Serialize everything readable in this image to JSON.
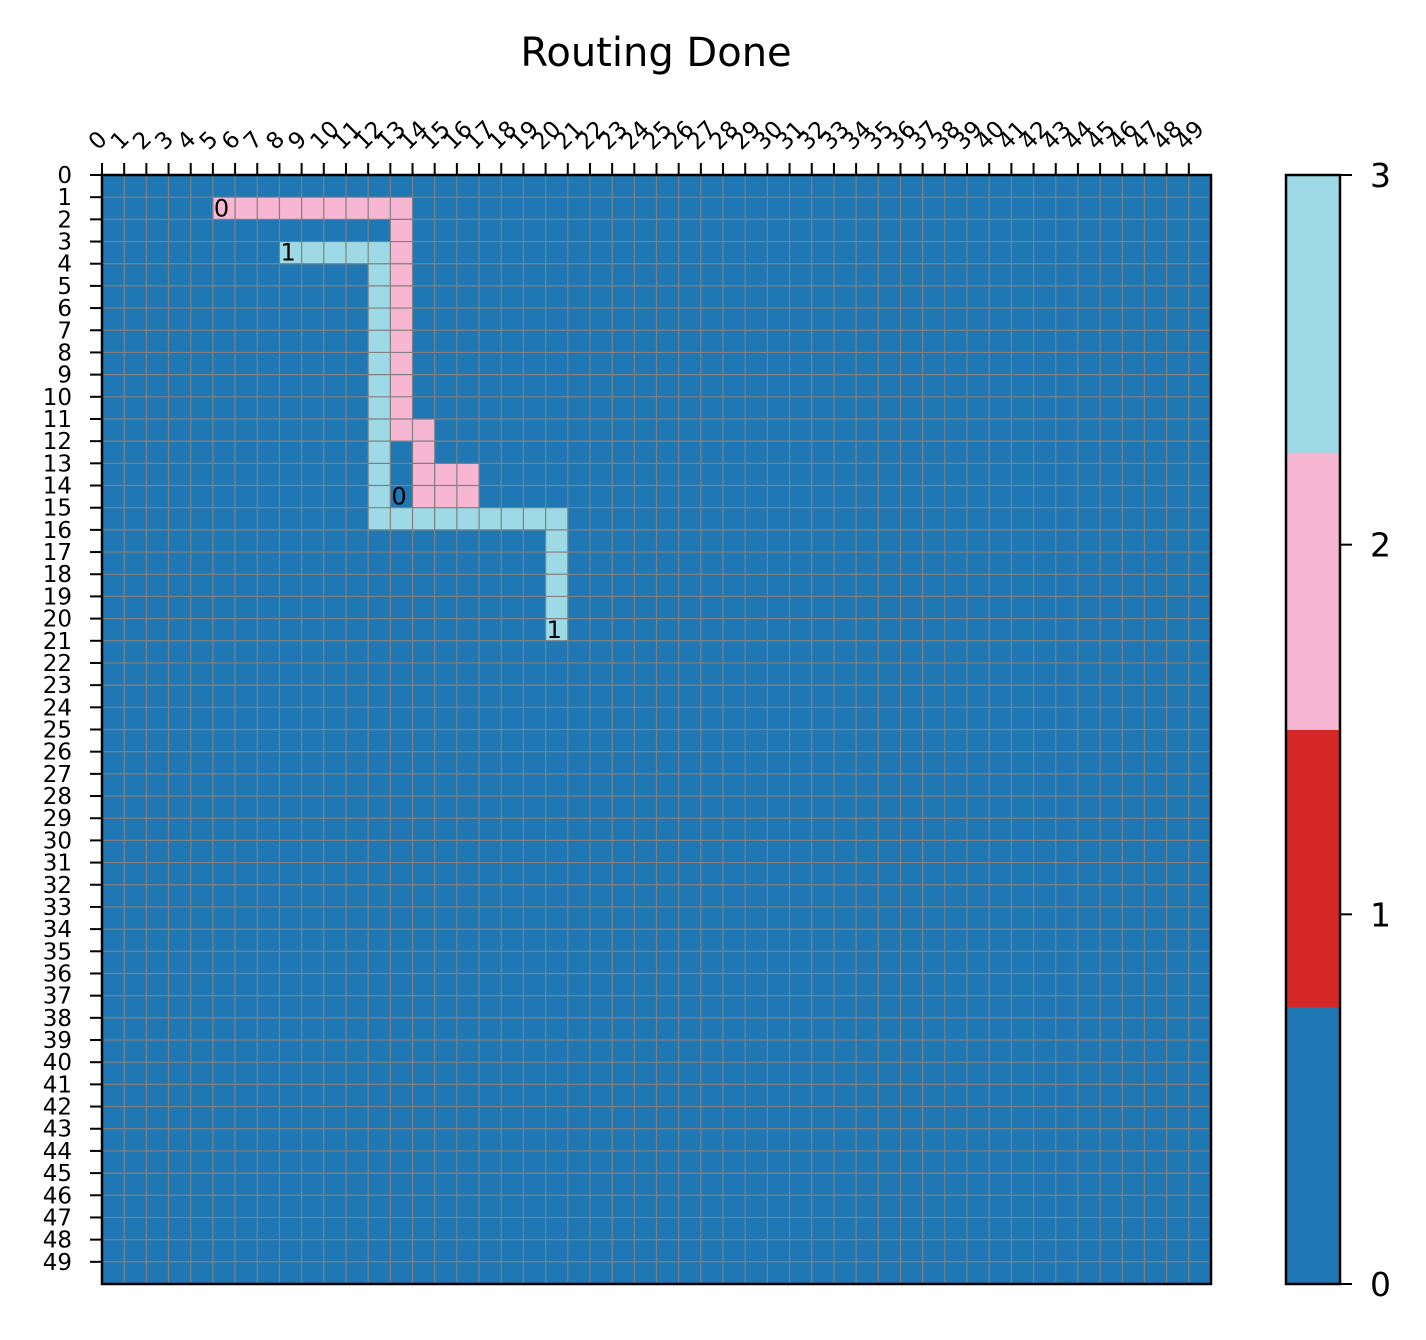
{
  "chart_data": {
    "type": "heatmap",
    "title": "Routing Done",
    "grid_size": 50,
    "grid": true,
    "x_tick_labels": [
      "0",
      "1",
      "2",
      "3",
      "4",
      "5",
      "6",
      "7",
      "8",
      "9",
      "10",
      "11",
      "12",
      "13",
      "14",
      "15",
      "16",
      "17",
      "18",
      "19",
      "20",
      "21",
      "22",
      "23",
      "24",
      "25",
      "26",
      "27",
      "28",
      "29",
      "30",
      "31",
      "32",
      "33",
      "34",
      "35",
      "36",
      "37",
      "38",
      "39",
      "40",
      "41",
      "42",
      "43",
      "44",
      "45",
      "46",
      "47",
      "48",
      "49"
    ],
    "y_tick_labels": [
      "0",
      "1",
      "2",
      "3",
      "4",
      "5",
      "6",
      "7",
      "8",
      "9",
      "10",
      "11",
      "12",
      "13",
      "14",
      "15",
      "16",
      "17",
      "18",
      "19",
      "20",
      "21",
      "22",
      "23",
      "24",
      "25",
      "26",
      "27",
      "28",
      "29",
      "30",
      "31",
      "32",
      "33",
      "34",
      "35",
      "36",
      "37",
      "38",
      "39",
      "40",
      "41",
      "42",
      "43",
      "44",
      "45",
      "46",
      "47",
      "48",
      "49"
    ],
    "default_value": 0,
    "colorbar": {
      "ticks": [
        "0",
        "1",
        "2",
        "3"
      ],
      "colors": [
        "#1f77b4",
        "#d62728",
        "#f7b6d2",
        "#9edae5"
      ]
    },
    "nets": [
      {
        "value": 2,
        "path": [
          [
            5,
            1
          ],
          [
            6,
            1
          ],
          [
            7,
            1
          ],
          [
            8,
            1
          ],
          [
            9,
            1
          ],
          [
            10,
            1
          ],
          [
            11,
            1
          ],
          [
            12,
            1
          ],
          [
            13,
            1
          ],
          [
            13,
            2
          ],
          [
            13,
            3
          ],
          [
            13,
            4
          ],
          [
            13,
            5
          ],
          [
            13,
            6
          ],
          [
            13,
            7
          ],
          [
            13,
            8
          ],
          [
            13,
            9
          ],
          [
            13,
            10
          ],
          [
            13,
            11
          ],
          [
            14,
            11
          ],
          [
            14,
            12
          ],
          [
            14,
            13
          ],
          [
            15,
            13
          ],
          [
            16,
            13
          ],
          [
            16,
            14
          ],
          [
            15,
            14
          ],
          [
            14,
            14
          ]
        ]
      },
      {
        "value": 3,
        "path": [
          [
            8,
            3
          ],
          [
            9,
            3
          ],
          [
            10,
            3
          ],
          [
            11,
            3
          ],
          [
            12,
            3
          ],
          [
            12,
            4
          ],
          [
            12,
            5
          ],
          [
            12,
            6
          ],
          [
            12,
            7
          ],
          [
            12,
            8
          ],
          [
            12,
            9
          ],
          [
            12,
            10
          ],
          [
            12,
            11
          ],
          [
            12,
            12
          ],
          [
            12,
            13
          ],
          [
            12,
            14
          ],
          [
            12,
            15
          ],
          [
            13,
            15
          ],
          [
            14,
            15
          ],
          [
            15,
            15
          ],
          [
            16,
            15
          ],
          [
            17,
            15
          ],
          [
            18,
            15
          ],
          [
            19,
            15
          ],
          [
            20,
            15
          ],
          [
            20,
            16
          ],
          [
            20,
            17
          ],
          [
            20,
            18
          ],
          [
            20,
            19
          ],
          [
            20,
            20
          ]
        ]
      }
    ],
    "pin_labels": [
      {
        "text": "0",
        "x": 5,
        "y": 1
      },
      {
        "text": "1",
        "x": 8,
        "y": 3
      },
      {
        "text": "0",
        "x": 13,
        "y": 14
      },
      {
        "text": "1",
        "x": 20,
        "y": 20
      }
    ]
  }
}
